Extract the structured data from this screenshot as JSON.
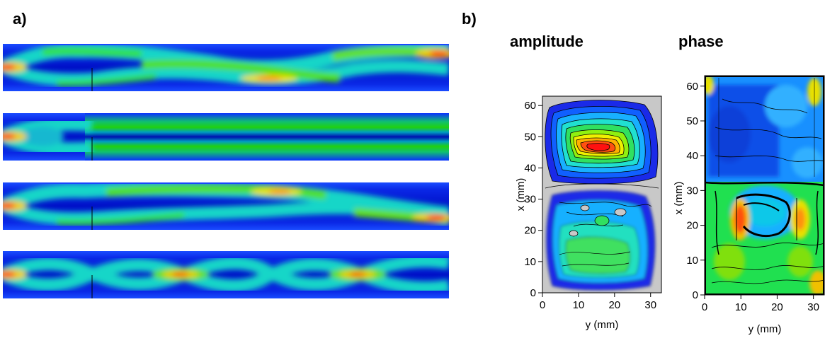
{
  "panel_a": {
    "label": "a)",
    "strip_count": 4
  },
  "panel_b": {
    "label": "b)",
    "plots": [
      {
        "title": "amplitude",
        "xlabel": "y (mm)",
        "ylabel": "x (mm)",
        "xticks": [
          "0",
          "10",
          "20",
          "30"
        ],
        "yticks": [
          "0",
          "10",
          "20",
          "30",
          "40",
          "50",
          "60"
        ],
        "xlim": [
          0,
          33
        ],
        "ylim": [
          0,
          63
        ]
      },
      {
        "title": "phase",
        "xlabel": "y (mm)",
        "ylabel": "x (mm)",
        "xticks": [
          "0",
          "10",
          "20",
          "30"
        ],
        "yticks": [
          "0",
          "10",
          "20",
          "30",
          "40",
          "50",
          "60"
        ],
        "xlim": [
          0,
          33
        ],
        "ylim": [
          0,
          63
        ]
      }
    ]
  },
  "colors": {
    "field_dark": "#0000c8",
    "field_mid": "#00d060",
    "field_peak": "#e81010",
    "background": "#c8c8c8"
  }
}
